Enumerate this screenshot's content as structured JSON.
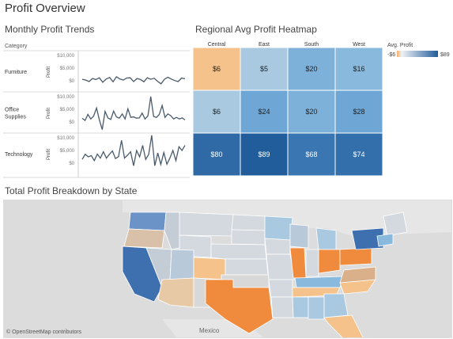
{
  "page_title": "Profit Overview",
  "trends": {
    "title": "Monthly Profit Trends",
    "category_header": "Category",
    "axis_label": "Profit",
    "ticks": [
      "$10,000",
      "$5,000",
      "$0"
    ],
    "rows": [
      {
        "label_lines": [
          "Furniture"
        ],
        "values": [
          600,
          300,
          -300,
          900,
          500,
          1200,
          -600,
          700,
          1300,
          -400,
          1600,
          700,
          300,
          1100,
          1200,
          -300,
          900,
          500,
          -400,
          1200,
          600,
          1000,
          -200,
          -1200,
          600,
          1400,
          700,
          100,
          -300,
          1100,
          800
        ]
      },
      {
        "label_lines": [
          "Office",
          "Supplies"
        ],
        "values": [
          1500,
          600,
          3000,
          1200,
          2300,
          5500,
          800,
          -3000,
          4200,
          1600,
          1000,
          4300,
          2000,
          1500,
          3200,
          1200,
          5200,
          1800,
          2000,
          1500,
          1600,
          3500,
          1200,
          2400,
          10000,
          2200,
          1800,
          3000,
          6500,
          1800,
          3200,
          2500,
          1200,
          1800,
          1200,
          1600,
          800
        ]
      },
      {
        "label_lines": [
          "Technology"
        ],
        "values": [
          1500,
          3500,
          2500,
          3000,
          1000,
          3600,
          2000,
          4500,
          2000,
          3500,
          4800,
          1800,
          2600,
          9000,
          2000,
          3200,
          4500,
          -1000,
          5000,
          2500,
          7000,
          1500,
          3500,
          11000,
          -1000,
          4000,
          -500,
          4200,
          -400,
          2000,
          5000,
          1000,
          6500,
          5000,
          7000
        ]
      }
    ]
  },
  "heatmap": {
    "title": "Regional Avg Profit Heatmap",
    "columns": [
      "Central",
      "East",
      "South",
      "West"
    ],
    "legend_title": "Avg. Profit",
    "legend_min": "-$6",
    "legend_max": "$89",
    "cells": [
      [
        {
          "label": "$6",
          "color": "#f4c28a"
        },
        {
          "label": "$5",
          "color": "#a9c9e0"
        },
        {
          "label": "$20",
          "color": "#7eb1da"
        },
        {
          "label": "$16",
          "color": "#8ab9de"
        }
      ],
      [
        {
          "label": "$6",
          "color": "#a9c9e0"
        },
        {
          "label": "$24",
          "color": "#6ea7d6"
        },
        {
          "label": "$20",
          "color": "#7eb1da"
        },
        {
          "label": "$28",
          "color": "#6ea7d6"
        }
      ],
      [
        {
          "label": "$80",
          "color": "#2f6aa6"
        },
        {
          "label": "$89",
          "color": "#215d9b"
        },
        {
          "label": "$68",
          "color": "#3a77b2"
        },
        {
          "label": "$74",
          "color": "#3370ab"
        }
      ]
    ]
  },
  "map": {
    "title": "Total Profit Breakdown by State",
    "credit": "© OpenStreetMap contributors",
    "country_label": "Mexico"
  }
}
